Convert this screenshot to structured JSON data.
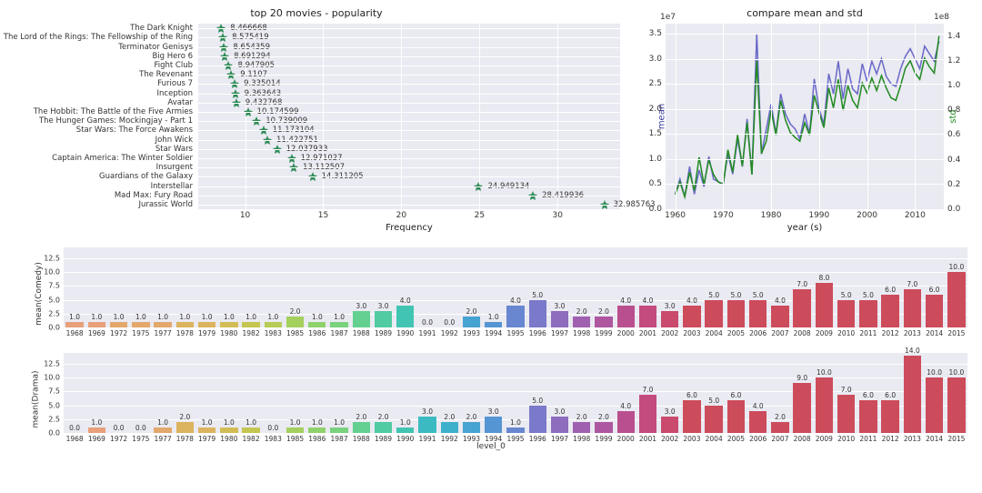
{
  "scatter": {
    "title": "top 20 movies - popularity",
    "xlabel": "Frequency",
    "xlim": [
      7,
      34
    ],
    "xticks": [
      10,
      15,
      20,
      25,
      30
    ],
    "marker_color": "#2e8b57",
    "marker": "star",
    "background_color": "#eaeaf2",
    "grid_color": "#ffffff",
    "label_fontsize": 8.5,
    "title_fontsize": 11,
    "movies": [
      {
        "label": "The Dark Knight",
        "value": 8.466668
      },
      {
        "label": "The Lord of the Rings: The Fellowship of the Ring",
        "value": 8.575419
      },
      {
        "label": "Terminator Genisys",
        "value": 8.654359
      },
      {
        "label": "Big Hero 6",
        "value": 8.691294
      },
      {
        "label": "Fight Club",
        "value": 8.947905
      },
      {
        "label": "The Revenant",
        "value": 9.1107
      },
      {
        "label": "Furious 7",
        "value": 9.335014
      },
      {
        "label": "Inception",
        "value": 9.363643
      },
      {
        "label": "Avatar",
        "value": 9.432768
      },
      {
        "label": "The Hobbit: The Battle of the Five Armies",
        "value": 10.174599
      },
      {
        "label": "The Hunger Games: Mockingjay - Part 1",
        "value": 10.739009
      },
      {
        "label": "Star Wars: The Force Awakens",
        "value": 11.173104
      },
      {
        "label": "John Wick",
        "value": 11.422751
      },
      {
        "label": "Star Wars",
        "value": 12.037933
      },
      {
        "label": "Captain America: The Winter Soldier",
        "value": 12.971027
      },
      {
        "label": "Insurgent",
        "value": 13.112507
      },
      {
        "label": "Guardians of the Galaxy",
        "value": 14.311205
      },
      {
        "label": "Interstellar",
        "value": 24.949134
      },
      {
        "label": "Mad Max: Fury Road",
        "value": 28.419936
      },
      {
        "label": "Jurassic World",
        "value": 32.985763
      }
    ]
  },
  "line_chart": {
    "title": "compare mean and std",
    "xlabel": "year (s)",
    "ylabel_left": "mean",
    "ylabel_right": "std",
    "ylabel_left_color": "#3b3b9e",
    "ylabel_right_color": "#228b22",
    "exp_left": "1e7",
    "exp_right": "1e8",
    "xlim": [
      1958,
      2016
    ],
    "xticks": [
      1960,
      1970,
      1980,
      1990,
      2000,
      2010
    ],
    "ylim_left": [
      0,
      3.7
    ],
    "yticks_left": [
      0.0,
      0.5,
      1.0,
      1.5,
      2.0,
      2.5,
      3.0,
      3.5
    ],
    "ylim_right": [
      0,
      1.5
    ],
    "yticks_right": [
      0.0,
      0.2,
      0.4,
      0.6,
      0.8,
      1.0,
      1.2,
      1.4
    ],
    "background_color": "#eaeaf2",
    "grid_color": "#ffffff",
    "line1_color": "#6a6ac8",
    "line2_color": "#228b22",
    "line_width": 1.5,
    "series_mean": [
      [
        1960,
        0.3
      ],
      [
        1961,
        0.6
      ],
      [
        1962,
        0.25
      ],
      [
        1963,
        0.85
      ],
      [
        1964,
        0.3
      ],
      [
        1965,
        0.78
      ],
      [
        1966,
        0.45
      ],
      [
        1967,
        1.05
      ],
      [
        1968,
        0.6
      ],
      [
        1969,
        0.55
      ],
      [
        1970,
        0.5
      ],
      [
        1971,
        1.1
      ],
      [
        1972,
        0.7
      ],
      [
        1973,
        1.4
      ],
      [
        1974,
        0.85
      ],
      [
        1975,
        1.8
      ],
      [
        1976,
        0.7
      ],
      [
        1977,
        3.5
      ],
      [
        1978,
        1.1
      ],
      [
        1979,
        1.6
      ],
      [
        1980,
        2.1
      ],
      [
        1981,
        1.5
      ],
      [
        1982,
        2.3
      ],
      [
        1983,
        1.9
      ],
      [
        1984,
        1.7
      ],
      [
        1985,
        1.6
      ],
      [
        1986,
        1.4
      ],
      [
        1987,
        1.9
      ],
      [
        1988,
        1.5
      ],
      [
        1989,
        2.6
      ],
      [
        1990,
        2.0
      ],
      [
        1991,
        1.7
      ],
      [
        1992,
        2.7
      ],
      [
        1993,
        2.3
      ],
      [
        1994,
        2.95
      ],
      [
        1995,
        2.2
      ],
      [
        1996,
        2.8
      ],
      [
        1997,
        2.4
      ],
      [
        1998,
        2.3
      ],
      [
        1999,
        2.9
      ],
      [
        2000,
        2.55
      ],
      [
        2001,
        2.95
      ],
      [
        2002,
        2.7
      ],
      [
        2003,
        3.0
      ],
      [
        2004,
        2.65
      ],
      [
        2005,
        2.5
      ],
      [
        2006,
        2.45
      ],
      [
        2007,
        2.8
      ],
      [
        2008,
        3.05
      ],
      [
        2009,
        3.2
      ],
      [
        2010,
        3.0
      ],
      [
        2011,
        2.8
      ],
      [
        2012,
        3.25
      ],
      [
        2013,
        3.1
      ],
      [
        2014,
        2.95
      ],
      [
        2015,
        3.35
      ]
    ],
    "series_std": [
      [
        1960,
        0.12
      ],
      [
        1961,
        0.22
      ],
      [
        1962,
        0.1
      ],
      [
        1963,
        0.3
      ],
      [
        1964,
        0.15
      ],
      [
        1965,
        0.42
      ],
      [
        1966,
        0.2
      ],
      [
        1967,
        0.4
      ],
      [
        1968,
        0.28
      ],
      [
        1969,
        0.22
      ],
      [
        1970,
        0.2
      ],
      [
        1971,
        0.48
      ],
      [
        1972,
        0.3
      ],
      [
        1973,
        0.6
      ],
      [
        1974,
        0.35
      ],
      [
        1975,
        0.7
      ],
      [
        1976,
        0.28
      ],
      [
        1977,
        1.2
      ],
      [
        1978,
        0.45
      ],
      [
        1979,
        0.55
      ],
      [
        1980,
        0.8
      ],
      [
        1981,
        0.6
      ],
      [
        1982,
        0.88
      ],
      [
        1983,
        0.72
      ],
      [
        1984,
        0.62
      ],
      [
        1985,
        0.58
      ],
      [
        1986,
        0.55
      ],
      [
        1987,
        0.7
      ],
      [
        1988,
        0.6
      ],
      [
        1989,
        0.92
      ],
      [
        1990,
        0.78
      ],
      [
        1991,
        0.66
      ],
      [
        1992,
        0.98
      ],
      [
        1993,
        0.82
      ],
      [
        1994,
        1.05
      ],
      [
        1995,
        0.8
      ],
      [
        1996,
        1.0
      ],
      [
        1997,
        0.88
      ],
      [
        1998,
        0.82
      ],
      [
        1999,
        1.02
      ],
      [
        2000,
        0.94
      ],
      [
        2001,
        1.06
      ],
      [
        2002,
        0.96
      ],
      [
        2003,
        1.08
      ],
      [
        2004,
        0.98
      ],
      [
        2005,
        0.9
      ],
      [
        2006,
        0.88
      ],
      [
        2007,
        1.0
      ],
      [
        2008,
        1.14
      ],
      [
        2009,
        1.2
      ],
      [
        2010,
        1.1
      ],
      [
        2011,
        1.05
      ],
      [
        2012,
        1.22
      ],
      [
        2013,
        1.15
      ],
      [
        2014,
        1.1
      ],
      [
        2015,
        1.4
      ]
    ]
  },
  "bars": {
    "background_color": "#eaeaf2",
    "grid_color": "#ffffff",
    "ymax": 14.5,
    "yticks": [
      0.0,
      2.5,
      5.0,
      7.5,
      10.0,
      12.5
    ],
    "xlabel": "level_0",
    "palette": [
      "#e8a07a",
      "#e8a07a",
      "#e3a86c",
      "#e3a86c",
      "#e3a86c",
      "#dcb35e",
      "#dcb35e",
      "#d2bd55",
      "#c5c552",
      "#b6cb55",
      "#a4d05e",
      "#8fd26c",
      "#79d27d",
      "#63d090",
      "#50cba2",
      "#42c4b3",
      "#3bbbc1",
      "#3db0cb",
      "#47a3d1",
      "#5695d3",
      "#6887d0",
      "#7b79c9",
      "#8e6cbe",
      "#9f60b0",
      "#ae56a0",
      "#ba4f8f",
      "#c34b7d",
      "#c94a6c",
      "#cd4c5c",
      "#cd4c5c",
      "#cd4c5c",
      "#cd4c5c",
      "#cd4c5c",
      "#cd4c5c",
      "#cd4c5c",
      "#cd4c5c",
      "#cd4c5c",
      "#cd4c5c",
      "#cd4c5c",
      "#cd4c5c",
      "#cd4c5c",
      "#cd4c5c",
      "#cd4c5c",
      "#cd4c5c"
    ],
    "panels": [
      {
        "ylabel": "mean(Comedy)",
        "years": [
          1968,
          1969,
          1972,
          1975,
          1977,
          1978,
          1979,
          1980,
          1982,
          1983,
          1985,
          1986,
          1987,
          1988,
          1989,
          1990,
          1991,
          1992,
          1993,
          1994,
          1995,
          1996,
          1997,
          1998,
          1999,
          2000,
          2001,
          2002,
          2003,
          2004,
          2005,
          2006,
          2007,
          2008,
          2009,
          2010,
          2011,
          2012,
          2013,
          2014,
          2015
        ],
        "values": [
          1.0,
          1.0,
          1.0,
          1.0,
          1.0,
          1.0,
          1.0,
          1.0,
          1.0,
          1.0,
          2.0,
          1.0,
          1.0,
          3.0,
          3.0,
          4.0,
          0.0,
          0.0,
          2.0,
          1.0,
          4.0,
          5.0,
          3.0,
          2.0,
          2.0,
          4.0,
          4.0,
          3.0,
          4.0,
          5.0,
          5.0,
          5.0,
          4.0,
          7.0,
          8.0,
          5.0,
          5.0,
          6.0,
          7.0,
          6.0,
          10.0
        ]
      },
      {
        "ylabel": "mean(Drama)",
        "years": [
          1968,
          1969,
          1972,
          1975,
          1977,
          1978,
          1979,
          1980,
          1982,
          1983,
          1985,
          1986,
          1987,
          1988,
          1989,
          1990,
          1991,
          1992,
          1993,
          1994,
          1995,
          1996,
          1997,
          1998,
          1999,
          2000,
          2001,
          2002,
          2003,
          2004,
          2005,
          2006,
          2007,
          2008,
          2009,
          2010,
          2011,
          2012,
          2013,
          2014,
          2015
        ],
        "values": [
          0.0,
          1.0,
          0.0,
          0.0,
          1.0,
          2.0,
          1.0,
          1.0,
          1.0,
          0.0,
          1.0,
          1.0,
          1.0,
          2.0,
          2.0,
          1.0,
          3.0,
          2.0,
          2.0,
          3.0,
          1.0,
          5.0,
          3.0,
          2.0,
          2.0,
          4.0,
          7.0,
          3.0,
          6.0,
          5.0,
          6.0,
          4.0,
          2.0,
          9.0,
          10.0,
          7.0,
          6.0,
          6.0,
          14.0,
          10.0,
          10.0
        ]
      }
    ]
  }
}
